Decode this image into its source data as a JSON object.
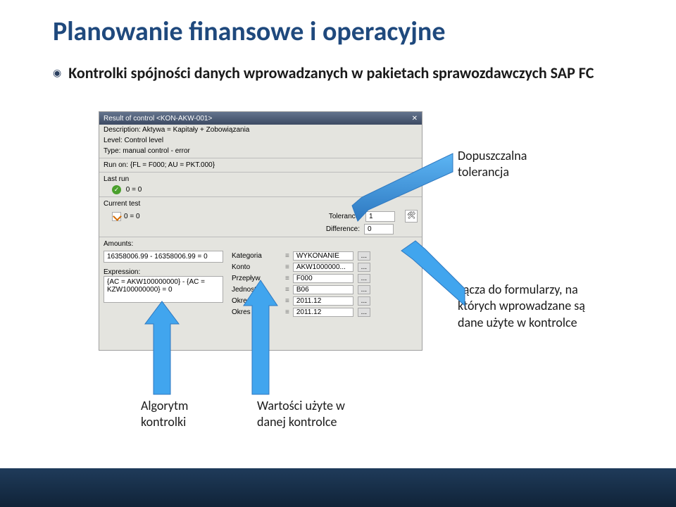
{
  "title": "Planowanie finansowe i operacyjne",
  "subtitle": "Kontrolki spójności danych wprowadzanych w pakietach sprawozdawczych SAP FC",
  "window": {
    "title": "Result of control <KON-AKW-001>",
    "close_glyph": "✕",
    "description_label": "Description:",
    "description_value": "Aktywa = Kapitały + Zobowiązania",
    "level_label": "Level:",
    "level_value": "Control level",
    "type_label": "Type:",
    "type_value": "manual control - error",
    "run_on_label": "Run on:",
    "run_on_value": "{FL = F000; AU = PKT.000}",
    "last_run_label": "Last run",
    "last_run_value": "0 = 0",
    "current_test_label": "Current test",
    "current_test_value": "0 = 0",
    "tolerance_label": "Tolerance:",
    "tolerance_value": "1",
    "difference_label": "Difference:",
    "difference_value": "0",
    "amounts_label": "Amounts:",
    "amount_expr": "16358006.99 - 16358006.99 = 0",
    "expression_label": "Expression:",
    "expression_value": "{AC = AKW100000000} - {AC = KZW100000000} = 0",
    "drill_icon": "🛠",
    "fields": [
      {
        "label": "Kategoria",
        "value": "WYKONANIE",
        "dots": "..."
      },
      {
        "label": "Konto",
        "value": "AKW1000000...",
        "dots": "..."
      },
      {
        "label": "Przepływ",
        "value": "F000",
        "dots": "..."
      },
      {
        "label": "Jednostka",
        "value": "B06",
        "dots": "..."
      },
      {
        "label": "Okres",
        "value": "2011.12",
        "dots": "..."
      },
      {
        "label": "Okres",
        "value": "2011.12",
        "dots": "..."
      }
    ]
  },
  "annotations": {
    "tolerance": "Dopuszczalna\ntolerancja",
    "links": "Łącza do formularzy, na\nktórych wprowadzane są\ndane użyte w kontrolce",
    "algorithm": "Algorytm\nkontrolki",
    "values": "Wartości użyte w\ndanej kontrolce"
  },
  "style": {
    "arrow_fill": "#41a5ee",
    "arrow_stroke": "#2e78c0",
    "title_color": "#1f497d",
    "footer_gradient_top": "#1f3b5a",
    "footer_gradient_bottom": "#102338"
  }
}
